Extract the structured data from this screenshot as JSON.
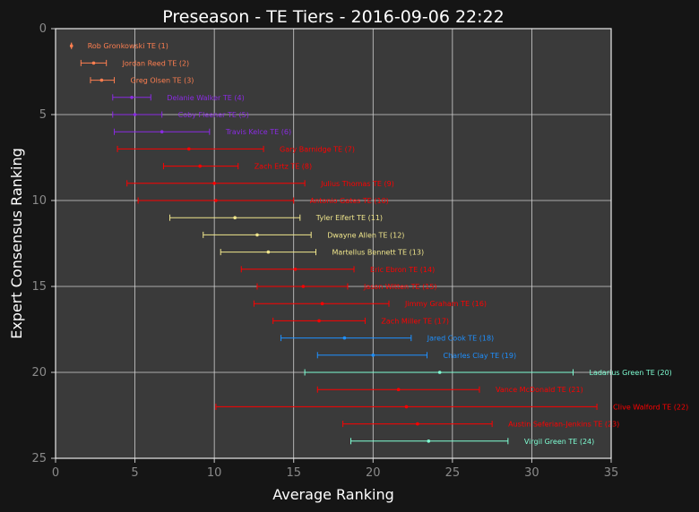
{
  "chart_data": {
    "type": "scatter",
    "title": "Preseason - TE Tiers - 2016-09-06 22:22",
    "xlabel": "Average Ranking",
    "ylabel": "Expert Consensus Ranking",
    "xlim": [
      0,
      35
    ],
    "ylim": [
      25,
      0
    ],
    "xticks": [
      "0",
      "5",
      "10",
      "15",
      "20",
      "25",
      "30",
      "35"
    ],
    "yticks": [
      "0",
      "5",
      "10",
      "15",
      "20",
      "25"
    ],
    "grid": true,
    "tier_colors": {
      "1": "#ff7f50",
      "2": "#8a2be2",
      "3": "#ff0000",
      "4": "#f0e68c",
      "5": "#ff0000",
      "6": "#1e90ff",
      "7": "#7fffd4",
      "8": "#ff0000",
      "9": "#7fffd4"
    },
    "points": [
      {
        "label": "Rob Gronkowski TE (1)",
        "rank": 1,
        "avg": 1.0,
        "min": 1.0,
        "max": 1.0,
        "tier": "1"
      },
      {
        "label": "Jordan Reed TE (2)",
        "rank": 2,
        "avg": 2.4,
        "min": 1.6,
        "max": 3.2,
        "tier": "1"
      },
      {
        "label": "Greg Olsen TE (3)",
        "rank": 3,
        "avg": 2.9,
        "min": 2.2,
        "max": 3.7,
        "tier": "1"
      },
      {
        "label": "Delanie Walker TE (4)",
        "rank": 4,
        "avg": 4.8,
        "min": 3.6,
        "max": 6.0,
        "tier": "2"
      },
      {
        "label": "Coby Fleener TE (5)",
        "rank": 5,
        "avg": 5.0,
        "min": 3.6,
        "max": 6.7,
        "tier": "2"
      },
      {
        "label": "Travis Kelce TE (6)",
        "rank": 6,
        "avg": 6.7,
        "min": 3.7,
        "max": 9.7,
        "tier": "2"
      },
      {
        "label": "Gary Barnidge TE (7)",
        "rank": 7,
        "avg": 8.4,
        "min": 3.9,
        "max": 13.1,
        "tier": "3"
      },
      {
        "label": "Zach Ertz TE (8)",
        "rank": 8,
        "avg": 9.1,
        "min": 6.8,
        "max": 11.5,
        "tier": "3"
      },
      {
        "label": "Julius Thomas TE (9)",
        "rank": 9,
        "avg": 10.0,
        "min": 4.5,
        "max": 15.7,
        "tier": "3"
      },
      {
        "label": "Antonio Gates TE (10)",
        "rank": 10,
        "avg": 10.1,
        "min": 5.2,
        "max": 15.0,
        "tier": "3"
      },
      {
        "label": "Tyler Eifert TE (11)",
        "rank": 11,
        "avg": 11.3,
        "min": 7.2,
        "max": 15.4,
        "tier": "4"
      },
      {
        "label": "Dwayne Allen TE (12)",
        "rank": 12,
        "avg": 12.7,
        "min": 9.3,
        "max": 16.1,
        "tier": "4"
      },
      {
        "label": "Martellus Bennett TE (13)",
        "rank": 13,
        "avg": 13.4,
        "min": 10.4,
        "max": 16.4,
        "tier": "4"
      },
      {
        "label": "Eric Ebron TE (14)",
        "rank": 14,
        "avg": 15.1,
        "min": 11.7,
        "max": 18.8,
        "tier": "5"
      },
      {
        "label": "Jason Witten TE (15)",
        "rank": 15,
        "avg": 15.6,
        "min": 12.7,
        "max": 18.4,
        "tier": "5"
      },
      {
        "label": "Jimmy Graham TE (16)",
        "rank": 16,
        "avg": 16.8,
        "min": 12.5,
        "max": 21.0,
        "tier": "5"
      },
      {
        "label": "Zach Miller TE (17)",
        "rank": 17,
        "avg": 16.6,
        "min": 13.7,
        "max": 19.5,
        "tier": "5"
      },
      {
        "label": "Jared Cook TE (18)",
        "rank": 18,
        "avg": 18.2,
        "min": 14.2,
        "max": 22.4,
        "tier": "6"
      },
      {
        "label": "Charles Clay TE (19)",
        "rank": 19,
        "avg": 20.0,
        "min": 16.5,
        "max": 23.4,
        "tier": "6"
      },
      {
        "label": "Ladarius Green TE (20)",
        "rank": 20,
        "avg": 24.2,
        "min": 15.7,
        "max": 32.6,
        "tier": "7"
      },
      {
        "label": "Vance McDonald TE (21)",
        "rank": 21,
        "avg": 21.6,
        "min": 16.5,
        "max": 26.7,
        "tier": "8"
      },
      {
        "label": "Clive Walford TE (22)",
        "rank": 22,
        "avg": 22.1,
        "min": 10.1,
        "max": 34.1,
        "tier": "8"
      },
      {
        "label": "Austin Seferian-Jenkins TE (23)",
        "rank": 23,
        "avg": 22.8,
        "min": 18.1,
        "max": 27.5,
        "tier": "8"
      },
      {
        "label": "Virgil Green TE (24)",
        "rank": 24,
        "avg": 23.5,
        "min": 18.6,
        "max": 28.5,
        "tier": "9"
      }
    ]
  }
}
